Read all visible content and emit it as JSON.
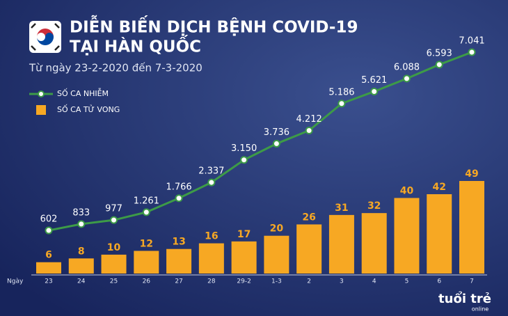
{
  "chart_data": {
    "type": "bar-line",
    "title": "DIỄN BIẾN DỊCH BỆNH COVID-19",
    "title_line2": "TẠI HÀN QUỐC",
    "subtitle": "Từ ngày 23-2-2020 đến 7-3-2020",
    "x_label": "Ngày",
    "categories": [
      "23",
      "24",
      "25",
      "26",
      "27",
      "28",
      "29-2",
      "1-3",
      "2",
      "3",
      "4",
      "5",
      "6",
      "7"
    ],
    "series": [
      {
        "name": "SỐ CA NHIỄM",
        "kind": "line",
        "color": "#3d9b47",
        "values": [
          602,
          833,
          977,
          1261,
          1766,
          2337,
          3150,
          3736,
          4212,
          5186,
          5621,
          6088,
          6593,
          7041
        ],
        "value_labels": [
          "602",
          "833",
          "977",
          "1.261",
          "1.766",
          "2.337",
          "3.150",
          "3.736",
          "4.212",
          "5.186",
          "5.621",
          "6.088",
          "6.593",
          "7.041"
        ]
      },
      {
        "name": "SỐ CA TỬ VONG",
        "kind": "bar",
        "color": "#f7a823",
        "values": [
          6,
          8,
          10,
          12,
          13,
          16,
          17,
          20,
          26,
          31,
          32,
          40,
          42,
          49
        ]
      }
    ],
    "logo": "tuổi trẻ",
    "logo_sub": "online"
  }
}
